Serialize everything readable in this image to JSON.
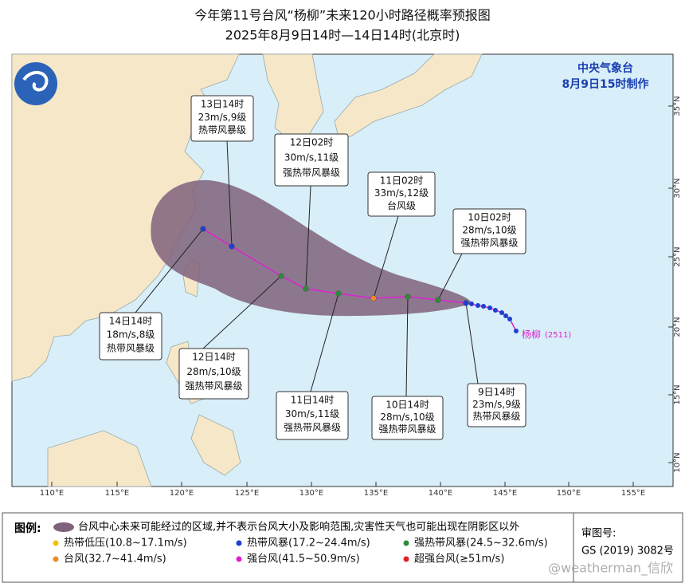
{
  "header": {
    "title": "今年第11号台风“杨柳”未来120小时路径概率预报图",
    "subtitle": "2025年8月9日14时—14日14时(北京时)"
  },
  "agency": {
    "name": "中央气象台",
    "issued": "8月9日15时制作"
  },
  "axis": {
    "lon_labels": [
      "110°E",
      "115°E",
      "120°E",
      "125°E",
      "130°E",
      "135°E",
      "140°E",
      "145°E",
      "150°E",
      "155°E"
    ],
    "lat_labels": [
      "35°N",
      "30°N",
      "25°N",
      "20°N",
      "15°N",
      "10°N"
    ]
  },
  "storm": {
    "name": "杨柳",
    "code": "(2511)"
  },
  "forecasts": [
    {
      "time": "9日14时",
      "wind": "23m/s,9级",
      "category": "热带风暴级",
      "color": "#1e3fd0"
    },
    {
      "time": "10日02时",
      "wind": "28m/s,10级",
      "category": "强热带风暴级",
      "color": "#2e8b3a"
    },
    {
      "time": "10日14时",
      "wind": "28m/s,10级",
      "category": "强热带风暴级",
      "color": "#2e8b3a"
    },
    {
      "time": "11日02时",
      "wind": "33m/s,12级",
      "category": "台风级",
      "color": "#f08a24"
    },
    {
      "time": "11日14时",
      "wind": "30m/s,11级",
      "category": "强热带风暴级",
      "color": "#2e8b3a"
    },
    {
      "time": "12日02时",
      "wind": "30m/s,11级",
      "category": "强热带风暴级",
      "color": "#2e8b3a"
    },
    {
      "time": "12日14时",
      "wind": "28m/s,10级",
      "category": "强热带风暴级",
      "color": "#2e8b3a"
    },
    {
      "time": "13日14时",
      "wind": "23m/s,9级",
      "category": "热带风暴级",
      "color": "#1e3fd0"
    },
    {
      "time": "14日14时",
      "wind": "18m/s,8级",
      "category": "热带风暴级",
      "color": "#1e3fd0"
    }
  ],
  "legend": {
    "title": "图例:",
    "cone": "台风中心未来可能经过的区域,并不表示台风大小及影响范围,灾害性天气也可能出现在阴影区以外",
    "items": [
      {
        "label": "热带低压(10.8~17.1m/s)",
        "color": "#f2c200"
      },
      {
        "label": "热带风暴(17.2~24.4m/s)",
        "color": "#1e3fd0"
      },
      {
        "label": "强热带风暴(24.5~32.6m/s)",
        "color": "#2e8b3a"
      },
      {
        "label": "台风(32.7~41.4m/s)",
        "color": "#f08a24"
      },
      {
        "label": "强台风(41.5~50.9m/s)",
        "color": "#e020d0"
      },
      {
        "label": "超强台风(≥51m/s)",
        "color": "#e02020"
      }
    ]
  },
  "approval": {
    "label": "审图号:",
    "number": "GS (2019) 3082号"
  },
  "watermark": "@weatherman_信欣"
}
